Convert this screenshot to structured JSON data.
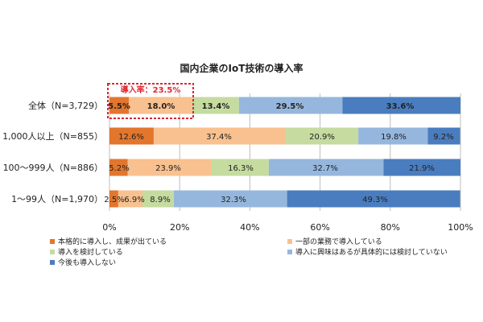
{
  "chart_data": {
    "type": "bar",
    "orientation": "horizontal",
    "stacked": true,
    "title": "国内企業のIoT技術の導入率",
    "categories": [
      "全体（N=3,729）",
      "1,000人以上（N=855）",
      "100〜999人（N=886）",
      "1〜99人（N=1,970）"
    ],
    "series": [
      {
        "name": "本格的に導入し、成果が出ている",
        "color": "#e2762d",
        "values": [
          5.5,
          12.6,
          5.2,
          2.5
        ],
        "labels": [
          "5.5%",
          "12.6%",
          "5.2%",
          "2.5%"
        ]
      },
      {
        "name": "一部の業務で導入している",
        "color": "#f8c18f",
        "values": [
          18.0,
          37.4,
          23.9,
          6.9
        ],
        "labels": [
          "18.0%",
          "37.4%",
          "23.9%",
          "6.9%"
        ]
      },
      {
        "name": "導入を検討している",
        "color": "#c5dba0",
        "values": [
          13.4,
          20.9,
          16.3,
          8.9
        ],
        "labels": [
          "13.4%",
          "20.9%",
          "16.3%",
          "8.9%"
        ]
      },
      {
        "name": "導入に興味はあるが具体的には検討していない",
        "color": "#96b7dd",
        "values": [
          29.5,
          19.8,
          32.7,
          32.3
        ],
        "labels": [
          "29.5%",
          "19.8%",
          "32.7%",
          "32.3%"
        ]
      },
      {
        "name": "今後も導入しない",
        "color": "#4a7dbf",
        "values": [
          33.6,
          9.2,
          21.9,
          49.3
        ],
        "labels": [
          "33.6%",
          "9.2%",
          "21.9%",
          "49.3%"
        ]
      }
    ],
    "xlim": [
      0,
      100
    ],
    "x_ticks": [
      "0%",
      "20%",
      "40%",
      "60%",
      "80%",
      "100%"
    ],
    "grid": true,
    "legend_position": "bottom",
    "annotation": {
      "text": "導入率：23.5%",
      "color": "#e0262f",
      "target_category": "全体（N=3,729）"
    }
  }
}
